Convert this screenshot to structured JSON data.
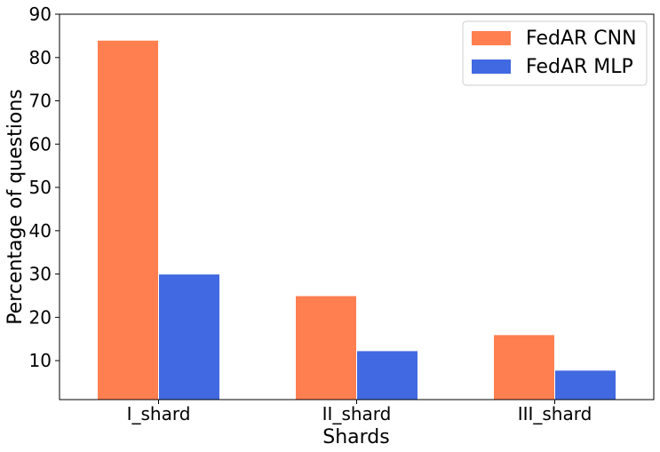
{
  "chart_data": {
    "type": "bar",
    "title": "",
    "xlabel": "Shards",
    "ylabel": "Percentage of questions",
    "categories": [
      "I_shard",
      "II_shard",
      "III_shard"
    ],
    "series": [
      {
        "name": "FedAR CNN",
        "values": [
          84,
          25,
          16
        ],
        "color": "#ff7f50"
      },
      {
        "name": "FedAR MLP",
        "values": [
          30,
          12.3,
          7.8
        ],
        "color": "#4169e1"
      }
    ],
    "ylim": [
      1,
      90
    ],
    "yticks": [
      10,
      20,
      30,
      40,
      50,
      60,
      70,
      80,
      90
    ],
    "grid": false,
    "legend_position": "top-right"
  }
}
